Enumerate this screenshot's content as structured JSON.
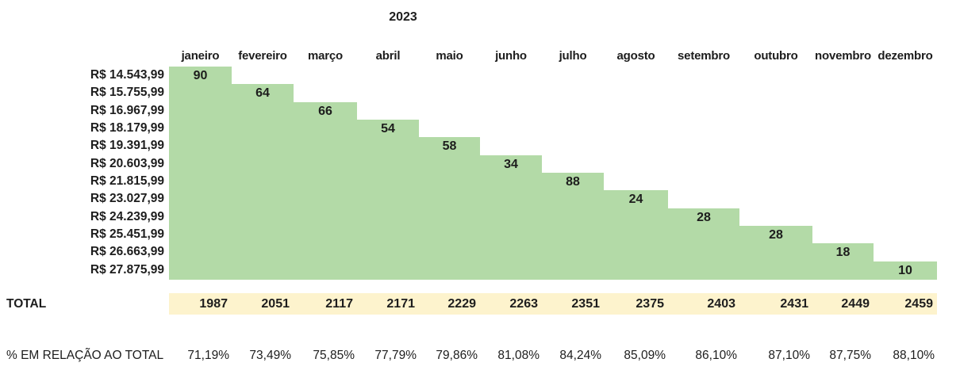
{
  "title": "2023",
  "months": [
    "janeiro",
    "fevereiro",
    "março",
    "abril",
    "maio",
    "junho",
    "julho",
    "agosto",
    "setembro",
    "outubro",
    "novembro",
    "dezembro"
  ],
  "rows": [
    {
      "label": "R$ 14.543,99",
      "value": "90"
    },
    {
      "label": "R$ 15.755,99",
      "value": "64"
    },
    {
      "label": "R$ 16.967,99",
      "value": "66"
    },
    {
      "label": "R$ 18.179,99",
      "value": "54"
    },
    {
      "label": "R$ 19.391,99",
      "value": "58"
    },
    {
      "label": "R$ 20.603,99",
      "value": "34"
    },
    {
      "label": "R$ 21.815,99",
      "value": "88"
    },
    {
      "label": "R$ 23.027,99",
      "value": "24"
    },
    {
      "label": "R$ 24.239,99",
      "value": "28"
    },
    {
      "label": "R$ 25.451,99",
      "value": "28"
    },
    {
      "label": "R$ 26.663,99",
      "value": "18"
    },
    {
      "label": "R$ 27.875,99",
      "value": "10"
    }
  ],
  "total_row": {
    "label": "TOTAL",
    "values": [
      "1987",
      "2051",
      "2117",
      "2171",
      "2229",
      "2263",
      "2351",
      "2375",
      "2403",
      "2431",
      "2449",
      "2459"
    ]
  },
  "percent_row": {
    "label": "% EM RELAÇÃO AO TOTAL",
    "values": [
      "71,19%",
      "73,49%",
      "75,85%",
      "77,79%",
      "79,86%",
      "81,08%",
      "84,24%",
      "85,09%",
      "86,10%",
      "87,10%",
      "87,75%",
      "88,10%"
    ]
  },
  "colors": {
    "green": "#b3daa7",
    "yellow": "#fdf3cd",
    "text": "#1d1d1d"
  },
  "chart_data": {
    "type": "table",
    "title": "2023",
    "columns": [
      "janeiro",
      "fevereiro",
      "março",
      "abril",
      "maio",
      "junho",
      "julho",
      "agosto",
      "setembro",
      "outubro",
      "novembro",
      "dezembro"
    ],
    "row_labels": [
      "R$ 14.543,99",
      "R$ 15.755,99",
      "R$ 16.967,99",
      "R$ 18.179,99",
      "R$ 19.391,99",
      "R$ 20.603,99",
      "R$ 21.815,99",
      "R$ 23.027,99",
      "R$ 24.239,99",
      "R$ 25.451,99",
      "R$ 26.663,99",
      "R$ 27.875,99"
    ],
    "step_values": [
      90,
      64,
      66,
      54,
      58,
      34,
      88,
      24,
      28,
      28,
      18,
      10
    ],
    "totals": [
      1987,
      2051,
      2117,
      2171,
      2229,
      2263,
      2351,
      2375,
      2403,
      2431,
      2449,
      2459
    ],
    "percent_of_total": [
      71.19,
      73.49,
      75.85,
      77.79,
      79.86,
      81.08,
      84.24,
      85.09,
      86.1,
      87.1,
      87.75,
      88.1
    ],
    "layout_hints": {
      "green_region": "stepped lower-left triangle: row i is filled from column 1 through column i; step value shown in diagonal cell",
      "totals_band": "yellow highlighted row spanning all 12 month columns",
      "grid": "off"
    }
  }
}
